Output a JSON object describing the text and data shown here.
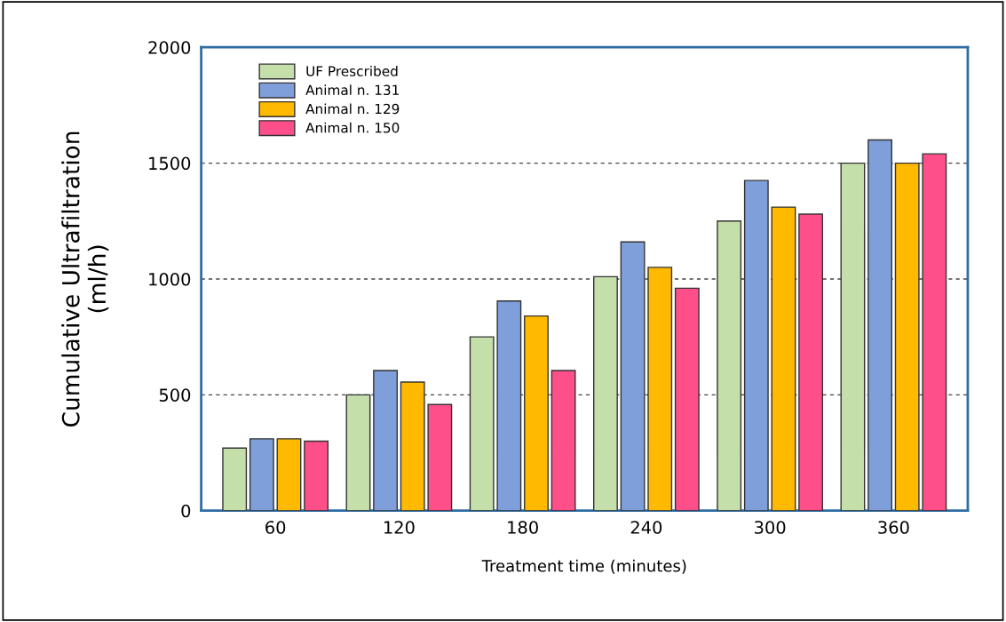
{
  "chart_data": {
    "type": "bar",
    "xlabel": "Treatment time (minutes)",
    "ylabel": "Cumulative Ultrafiltration\n(ml/h)",
    "categories": [
      "60",
      "120",
      "180",
      "240",
      "300",
      "360"
    ],
    "series": [
      {
        "name": "UF Prescribed",
        "color": "#c4dfaa",
        "values": [
          270,
          500,
          750,
          1010,
          1250,
          1500
        ]
      },
      {
        "name": "Animal n. 131",
        "color": "#7f9fdb",
        "values": [
          310,
          605,
          905,
          1160,
          1425,
          1600
        ]
      },
      {
        "name": "Animal n. 129",
        "color": "#ffba00",
        "values": [
          310,
          555,
          840,
          1050,
          1310,
          1500
        ]
      },
      {
        "name": "Animal n. 150",
        "color": "#ff4f8a",
        "values": [
          300,
          458,
          605,
          960,
          1280,
          1540
        ]
      }
    ],
    "ylim": [
      0,
      2000
    ],
    "yticks": [
      0,
      500,
      1000,
      1500,
      2000
    ],
    "grid": "y",
    "legend": "top left"
  }
}
